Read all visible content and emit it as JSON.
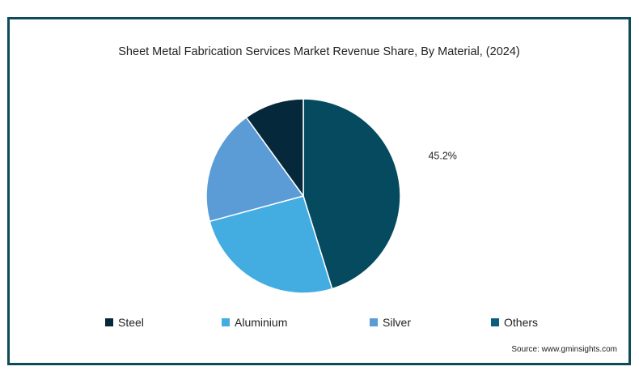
{
  "chart_data": {
    "type": "pie",
    "title": "Sheet Metal Fabrication Services Market Revenue Share, By Material, (2024)",
    "slices": [
      {
        "name": "Steel",
        "value": 45.2,
        "color": "#054a5f",
        "label": "45.2%"
      },
      {
        "name": "Aluminium",
        "value": 25.6,
        "color": "#43ace1",
        "label": ""
      },
      {
        "name": "Silver",
        "value": 19.2,
        "color": "#5b9bd6",
        "label": ""
      },
      {
        "name": "Others",
        "value": 10.0,
        "color": "#05293b",
        "label": ""
      }
    ],
    "legend": [
      {
        "name": "Steel",
        "color": "#05293b"
      },
      {
        "name": "Aluminium",
        "color": "#43ace1"
      },
      {
        "name": "Silver",
        "color": "#5b9bd6"
      },
      {
        "name": "Others",
        "color": "#0b5d7c"
      }
    ],
    "legend_position": "bottom"
  },
  "source": "Source: www.gminsights.com"
}
